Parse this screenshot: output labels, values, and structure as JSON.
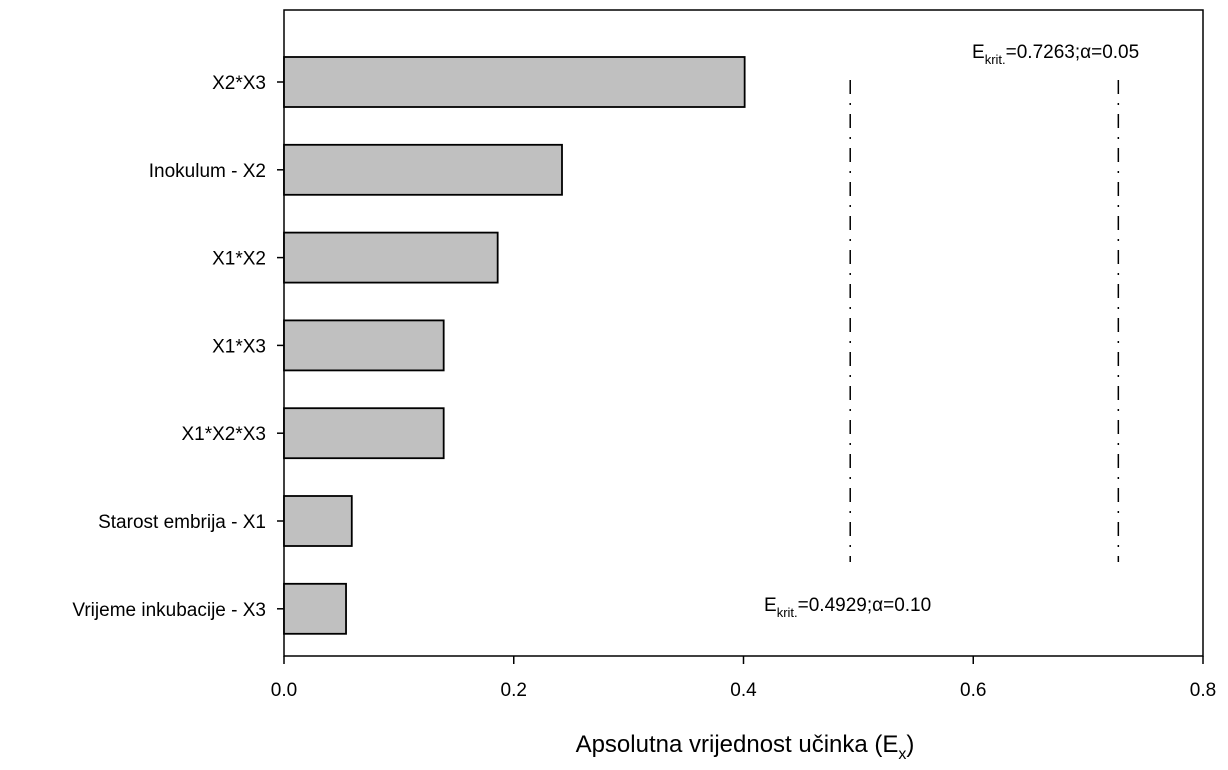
{
  "chart_data": {
    "type": "bar",
    "orientation": "horizontal",
    "categories": [
      "X2*X3",
      "Inokulum - X2",
      "X1*X2",
      "X1*X3",
      "X1*X2*X3",
      "Starost embrija - X1",
      "Vrijeme inkubacije - X3"
    ],
    "values": [
      0.401,
      0.242,
      0.186,
      0.139,
      0.139,
      0.059,
      0.054
    ],
    "bar_color": "#c0c0c0",
    "xlim": [
      0,
      0.8
    ],
    "xticks": [
      "0.0",
      "0.2",
      "0.4",
      "0.6",
      "0.8"
    ],
    "xtick_values": [
      0,
      0.2,
      0.4,
      0.6,
      0.8
    ],
    "xlabel_main": "Apsolutna vrijednost učinka (E",
    "xlabel_sub": "x",
    "xlabel_close": ")",
    "grid": false,
    "reference_lines": [
      {
        "value": 0.4929,
        "style": "dash-dot",
        "label_base": "E",
        "label_sub": "krit.",
        "label_rest": "=0.4929;α=0.10"
      },
      {
        "value": 0.7263,
        "style": "dash-dot",
        "label_base": "E",
        "label_sub": "krit.",
        "label_rest": "=0.7263;α=0.05"
      }
    ]
  }
}
